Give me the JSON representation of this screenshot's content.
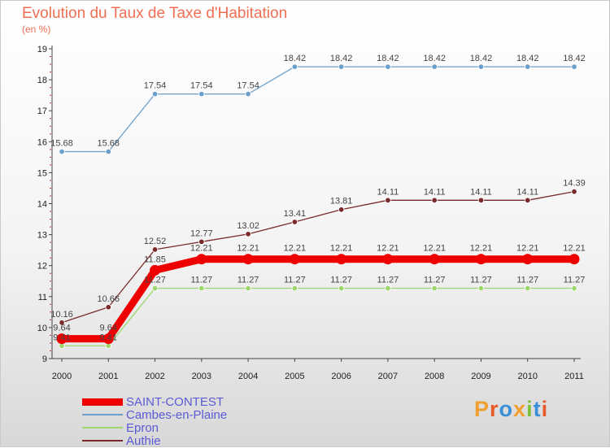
{
  "header": {
    "title": "Evolution du Taux de Taxe d'Habitation",
    "unit": "(en %)"
  },
  "brand": {
    "text": "Proxiti",
    "letter_colors": [
      "#f0a030",
      "#e85a2a",
      "#3a8fd9",
      "#f0a030",
      "#7bbf3a",
      "#3a8fd9",
      "#e85a2a"
    ]
  },
  "chart_data": {
    "type": "line",
    "title": "Evolution du Taux de Taxe d'Habitation",
    "ylabel": "(en %)",
    "xlabel": "",
    "x": [
      "2000",
      "2001",
      "2002",
      "2003",
      "2004",
      "2005",
      "2006",
      "2007",
      "2008",
      "2009",
      "2010",
      "2011"
    ],
    "ylim": [
      9,
      19
    ],
    "yticks": [
      "9",
      "10",
      "11",
      "12",
      "13",
      "14",
      "15",
      "16",
      "17",
      "18",
      "19"
    ],
    "grid": false,
    "legend": "bottom-left",
    "series": [
      {
        "name": "SAINT-CONTEST",
        "color": "#ee0000",
        "emphasis": true,
        "values": [
          9.64,
          9.64,
          11.85,
          12.21,
          12.21,
          12.21,
          12.21,
          12.21,
          12.21,
          12.21,
          12.21,
          12.21
        ],
        "labels": [
          "9.64",
          "9.64",
          "11.85",
          "12.21",
          "12.21",
          "12.21",
          "12.21",
          "12.21",
          "12.21",
          "12.21",
          "12.21",
          "12.21"
        ]
      },
      {
        "name": "Cambes-en-Plaine",
        "color": "#6a9fcb",
        "values": [
          15.68,
          15.68,
          17.54,
          17.54,
          17.54,
          18.42,
          18.42,
          18.42,
          18.42,
          18.42,
          18.42,
          18.42
        ],
        "labels": [
          "15.68",
          "15.68",
          "17.54",
          "17.54",
          "17.54",
          "18.42",
          "18.42",
          "18.42",
          "18.42",
          "18.42",
          "18.42",
          "18.42"
        ]
      },
      {
        "name": "Epron",
        "color": "#9cd66d",
        "values": [
          9.41,
          9.41,
          11.27,
          11.27,
          11.27,
          11.27,
          11.27,
          11.27,
          11.27,
          11.27,
          11.27,
          11.27
        ],
        "labels": [
          "9.41",
          "9.41",
          "11.27",
          "11.27",
          "11.27",
          "11.27",
          "11.27",
          "11.27",
          "11.27",
          "11.27",
          "11.27",
          "11.27"
        ]
      },
      {
        "name": "Authie",
        "color": "#7a2a2a",
        "values": [
          10.16,
          10.66,
          12.52,
          12.77,
          13.02,
          13.41,
          13.81,
          14.11,
          14.11,
          14.11,
          14.11,
          14.39
        ],
        "labels": [
          "10.16",
          "10.66",
          "12.52",
          "12.77",
          "13.02",
          "13.41",
          "13.81",
          "14.11",
          "14.11",
          "14.11",
          "14.11",
          "14.39"
        ]
      }
    ]
  }
}
